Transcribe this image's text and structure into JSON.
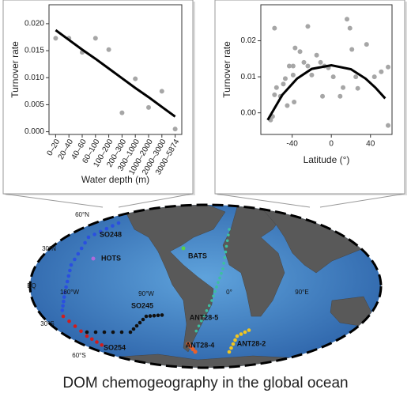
{
  "chart_data": [
    {
      "type": "scatter",
      "y_label": "Turnover rate",
      "x_label": "Water depth (m)",
      "categories": [
        "0–20",
        "20–40",
        "40–60",
        "60–100",
        "100–200",
        "200–300",
        "300–1000",
        "1000–2000",
        "2000–3000",
        "3000–5874"
      ],
      "values": [
        0.0173,
        0.0173,
        0.0147,
        0.0173,
        0.0152,
        0.0035,
        0.0098,
        0.0045,
        0.0075,
        0.0005
      ],
      "color": "#a6a6a6",
      "fit_values": [
        0.0188,
        0.017,
        0.0152,
        0.0135,
        0.0117,
        0.0099,
        0.0081,
        0.0064,
        0.0046,
        0.0028
      ],
      "fit_color": "#000000",
      "ylim": [
        -0.0005,
        0.0235
      ],
      "yticks": [
        {
          "value": 0,
          "label": "0.000"
        },
        {
          "value": 0.005,
          "label": "0.005"
        },
        {
          "value": 0.01,
          "label": "0.010"
        },
        {
          "value": 0.015,
          "label": "0.015"
        },
        {
          "value": 0.02,
          "label": "0.020"
        }
      ]
    },
    {
      "type": "scatter",
      "y_label": "Turnover rate",
      "x_label": "Latitude (°)",
      "x": [
        -62,
        -60,
        -58,
        -56,
        -58,
        -52,
        -49,
        -47,
        -45,
        -43,
        -39,
        -39,
        -38,
        -37,
        -32,
        -28,
        -24,
        -24,
        -20,
        -15,
        -11,
        -9,
        -7,
        -3,
        2,
        9,
        12,
        16,
        19,
        21,
        25,
        27,
        36,
        44,
        51,
        58,
        58
      ],
      "values": [
        -0.002,
        -0.001,
        0.005,
        0.007,
        0.0235,
        0.0046,
        0.008,
        0.0095,
        0.002,
        0.013,
        0.013,
        0.0105,
        0.003,
        0.018,
        0.017,
        0.014,
        0.013,
        0.024,
        0.0105,
        0.016,
        0.014,
        0.0046,
        0.013,
        0.0125,
        0.01,
        0.0046,
        0.007,
        0.026,
        0.0235,
        0.0176,
        0.01,
        0.0068,
        0.019,
        0.01,
        0.0114,
        0.0127,
        -0.0035
      ],
      "color": "#a6a6a6",
      "fit_x": [
        -65,
        -50,
        -35,
        -20,
        0,
        20,
        35,
        45,
        55
      ],
      "fit_values": [
        -0.002,
        0.005,
        0.0095,
        0.0122,
        0.0132,
        0.0121,
        0.0095,
        0.007,
        0.004
      ],
      "fit_color": "#000000",
      "xlim": [
        -72,
        62
      ],
      "xticks": [
        -40,
        0,
        40
      ],
      "ylim": [
        -0.006,
        0.03
      ],
      "yticks": [
        {
          "value": 0,
          "label": "0.00"
        },
        {
          "value": 0.01,
          "label": "0.01"
        },
        {
          "value": 0.02,
          "label": "0.02"
        }
      ]
    }
  ],
  "map": {
    "graticule": [
      "60°N",
      "30°N",
      "EQ",
      "30°S",
      "60°S",
      "180°W",
      "90°W",
      "0°",
      "90°E"
    ],
    "cruises": [
      "SO248",
      "HOTS",
      "BATS",
      "SO245",
      "ANT28-5",
      "ANT28-4",
      "ANT28-2",
      "SO254"
    ]
  },
  "caption": "DOM chemogeography in the global ocean"
}
